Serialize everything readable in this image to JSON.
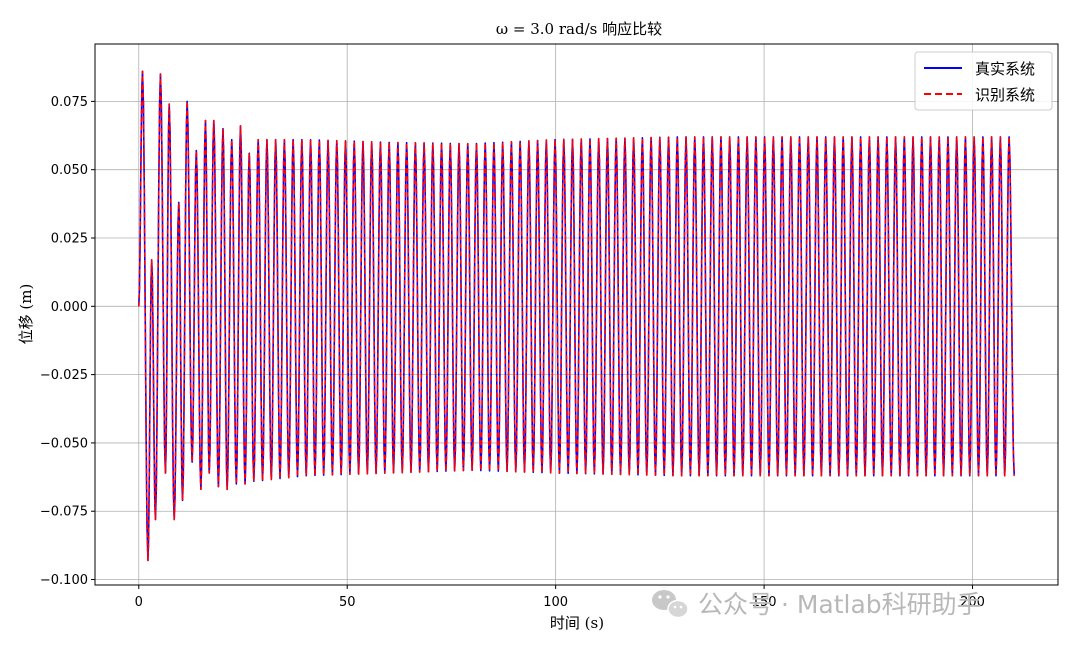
{
  "watermark": {
    "text": "公众号 · Matlab科研助手",
    "icon": "wechat-icon"
  },
  "chart_data": {
    "type": "line",
    "title": "ω = 3.0 rad/s 响应比较",
    "xlabel": "时间 (s)",
    "ylabel": "位移 (m)",
    "xlim": [
      -10.5,
      220.5
    ],
    "ylim": [
      -0.102,
      0.096
    ],
    "xticks": [
      0,
      50,
      100,
      150,
      200
    ],
    "xtick_labels": [
      "0",
      "50",
      "100",
      "150",
      "200"
    ],
    "yticks": [
      -0.1,
      -0.075,
      -0.05,
      -0.025,
      0.0,
      0.025,
      0.05,
      0.075
    ],
    "ytick_labels": [
      "−0.100",
      "−0.075",
      "−0.050",
      "−0.025",
      "0.000",
      "0.025",
      "0.050",
      "0.075"
    ],
    "grid": true,
    "legend_position": "top-right",
    "x_start": 0,
    "x_end": 210,
    "oscillation_frequency_rad_s": 3.0,
    "transient_peaks": [
      {
        "x": 0.9,
        "y": 0.086
      },
      {
        "x": 2.2,
        "y": -0.093
      },
      {
        "x": 3.1,
        "y": 0.017
      },
      {
        "x": 4.0,
        "y": -0.078
      },
      {
        "x": 5.2,
        "y": 0.085
      },
      {
        "x": 6.4,
        "y": -0.061
      },
      {
        "x": 7.3,
        "y": 0.074
      },
      {
        "x": 8.5,
        "y": -0.078
      },
      {
        "x": 9.6,
        "y": 0.038
      },
      {
        "x": 10.5,
        "y": -0.071
      },
      {
        "x": 11.6,
        "y": 0.075
      },
      {
        "x": 12.8,
        "y": -0.057
      },
      {
        "x": 13.8,
        "y": 0.057
      },
      {
        "x": 14.9,
        "y": -0.067
      },
      {
        "x": 16.0,
        "y": 0.068
      },
      {
        "x": 16.9,
        "y": -0.061
      },
      {
        "x": 18.0,
        "y": 0.068
      },
      {
        "x": 19.1,
        "y": -0.066
      },
      {
        "x": 20.2,
        "y": 0.065
      },
      {
        "x": 21.2,
        "y": -0.067
      },
      {
        "x": 22.3,
        "y": 0.061
      },
      {
        "x": 23.4,
        "y": -0.065
      },
      {
        "x": 24.4,
        "y": 0.066
      },
      {
        "x": 25.5,
        "y": -0.065
      },
      {
        "x": 26.5,
        "y": 0.056
      },
      {
        "x": 27.6,
        "y": -0.064
      }
    ],
    "steady_envelope": [
      {
        "x": 28,
        "top": 0.061,
        "bottom": -0.064
      },
      {
        "x": 40,
        "top": 0.061,
        "bottom": -0.062
      },
      {
        "x": 60,
        "top": 0.06,
        "bottom": -0.061
      },
      {
        "x": 80,
        "top": 0.0595,
        "bottom": -0.06
      },
      {
        "x": 100,
        "top": 0.061,
        "bottom": -0.061
      },
      {
        "x": 130,
        "top": 0.062,
        "bottom": -0.062
      },
      {
        "x": 210,
        "top": 0.062,
        "bottom": -0.062
      }
    ],
    "end_value": -0.062,
    "series": [
      {
        "name": "真实系统",
        "color": "#0000ff",
        "style": "solid"
      },
      {
        "name": "识别系统",
        "color": "#ff0000",
        "style": "dashed"
      }
    ]
  }
}
